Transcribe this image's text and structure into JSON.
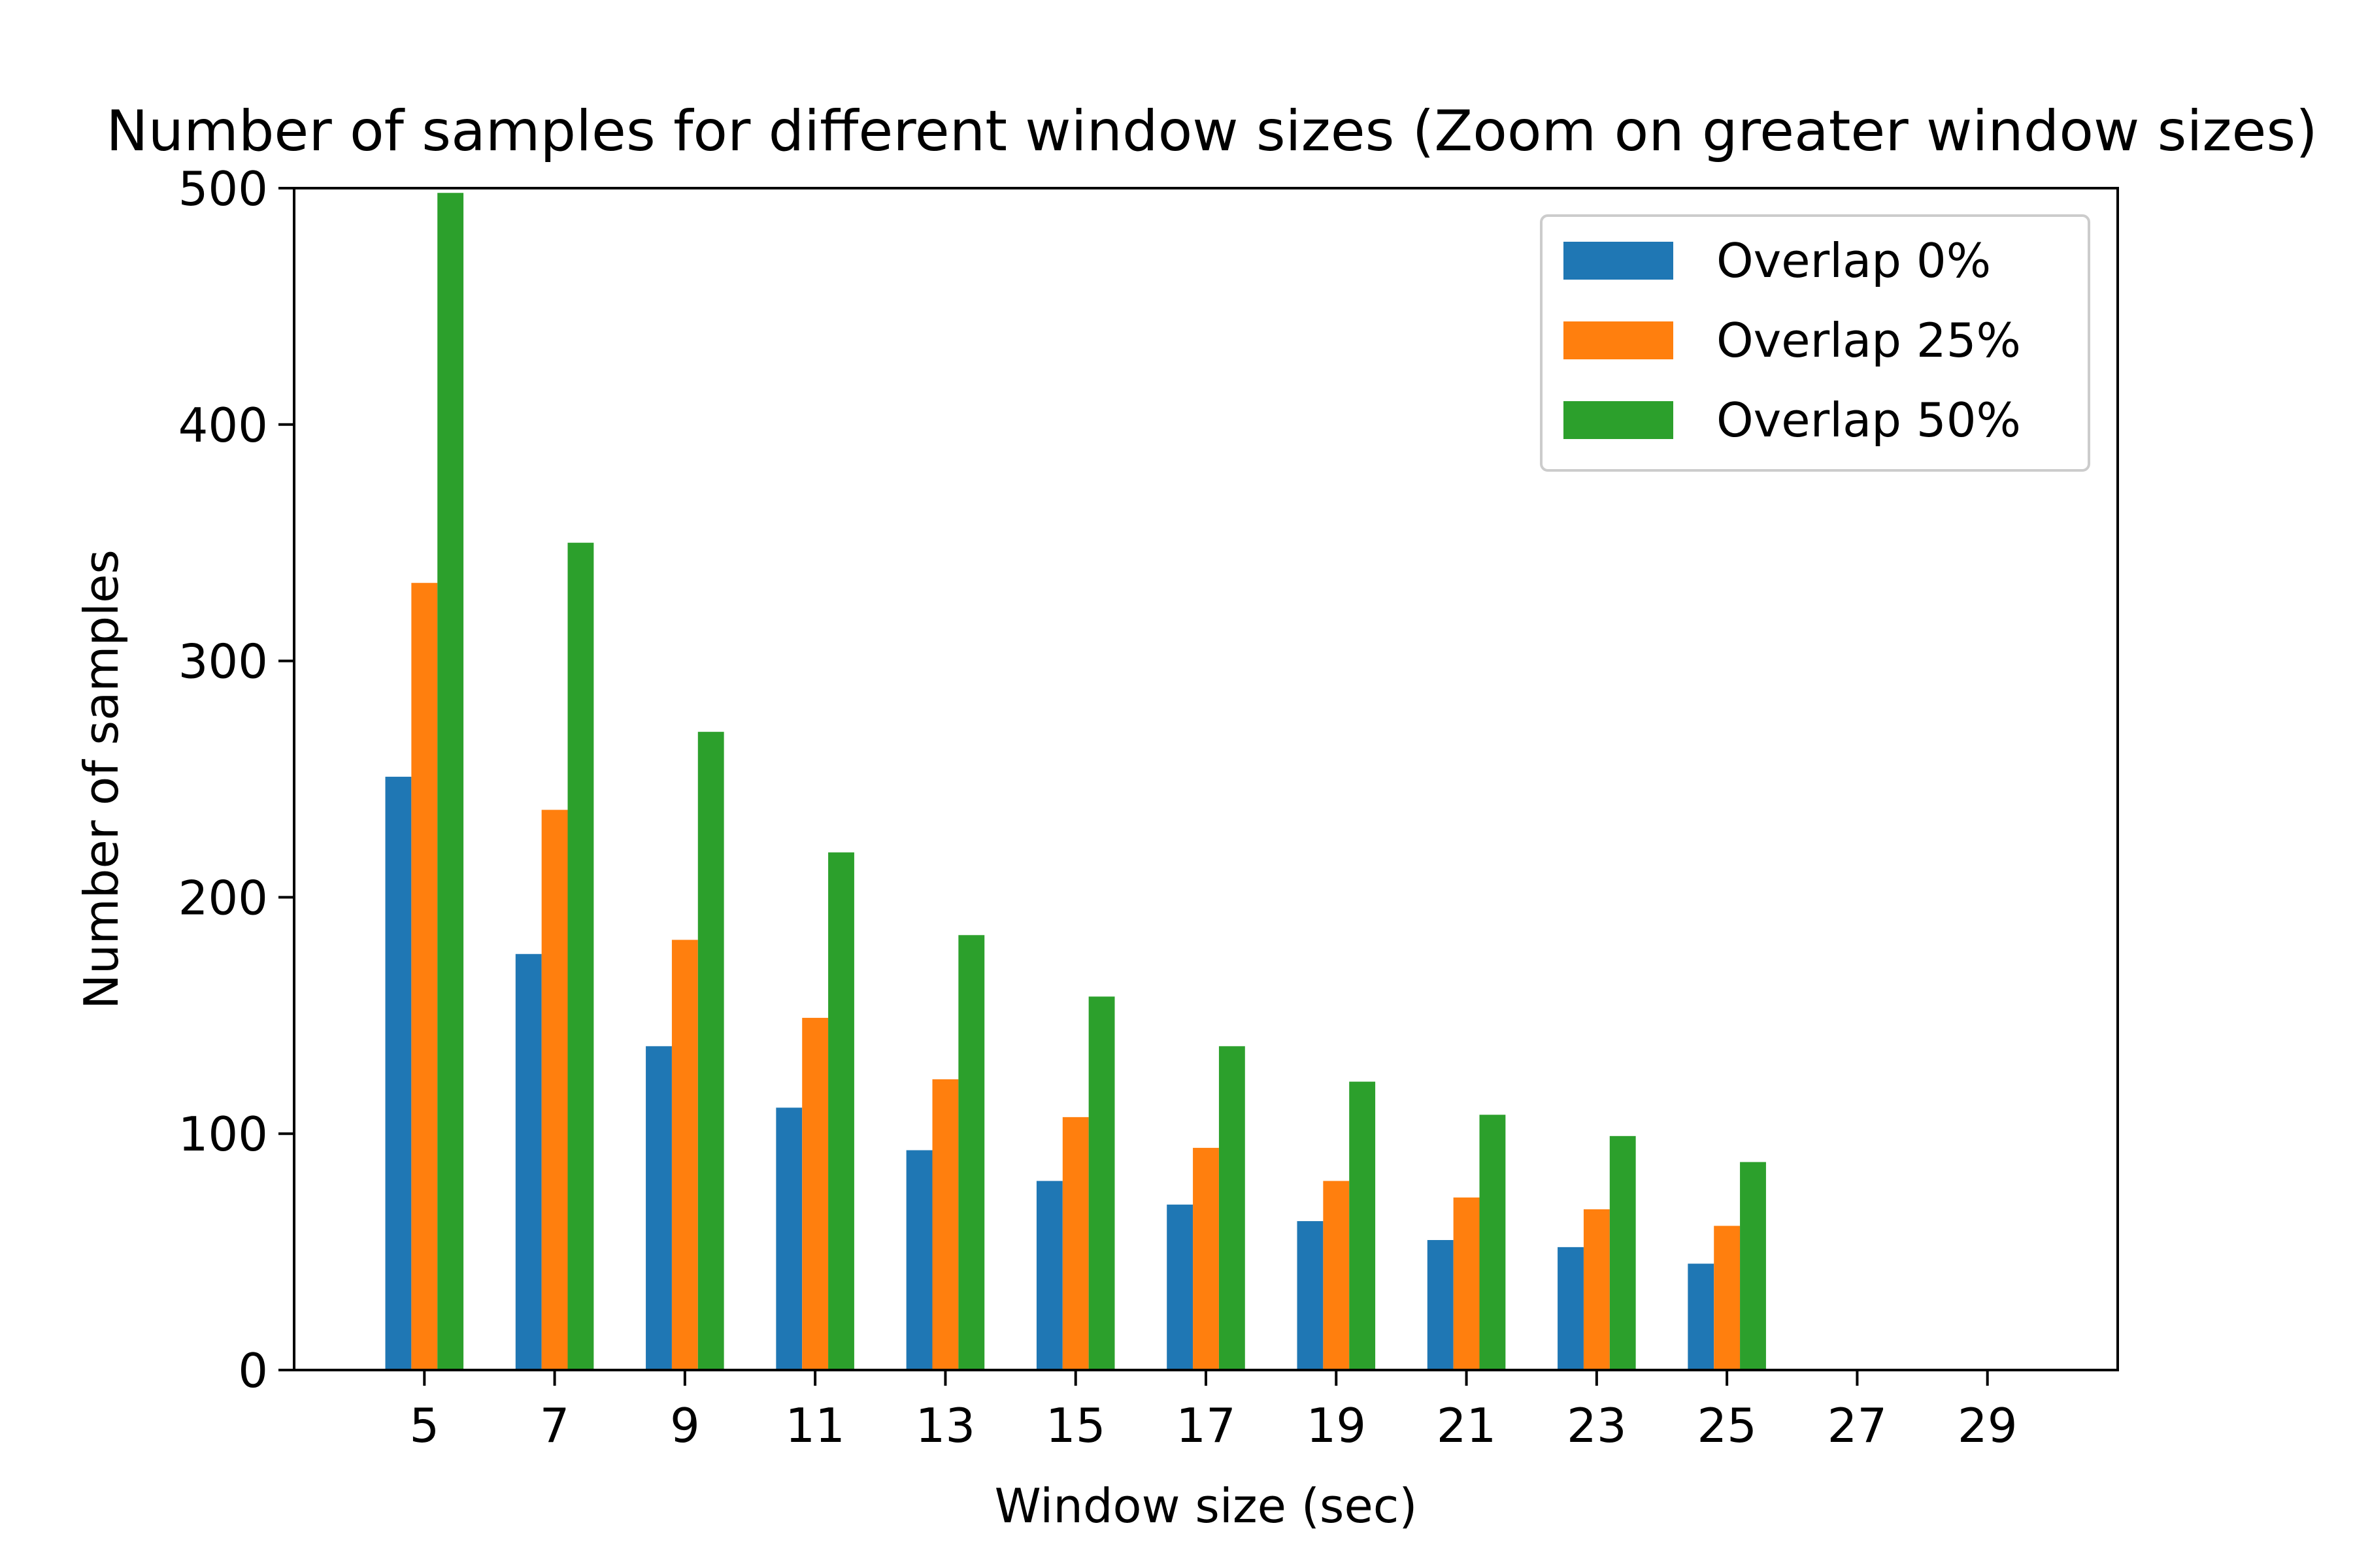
{
  "chart_data": {
    "type": "bar",
    "title": "Number of samples for different window sizes (Zoom on greater window sizes)",
    "xlabel": "Window size (sec)",
    "ylabel": "Number of samples",
    "xticks": [
      "5",
      "7",
      "9",
      "11",
      "13",
      "15",
      "17",
      "19",
      "21",
      "23",
      "25",
      "27",
      "29"
    ],
    "categories": [
      "5",
      "7",
      "9",
      "11",
      "13",
      "15",
      "17",
      "19",
      "21",
      "23",
      "25"
    ],
    "ylim": [
      0,
      500
    ],
    "yticks": [
      0,
      100,
      200,
      300,
      400,
      500
    ],
    "grid": false,
    "legend": "top-right",
    "series": [
      {
        "name": "Overlap 0%",
        "color": "#1f77b4",
        "values": [
          251,
          176,
          137,
          111,
          93,
          80,
          70,
          63,
          55,
          52,
          45
        ]
      },
      {
        "name": "Overlap 25%",
        "color": "#ff7f0e",
        "values": [
          333,
          237,
          182,
          149,
          123,
          107,
          94,
          80,
          73,
          68,
          61
        ]
      },
      {
        "name": "Overlap 50%",
        "color": "#2ca02c",
        "values": [
          498,
          350,
          270,
          219,
          184,
          158,
          137,
          122,
          108,
          99,
          88
        ]
      }
    ]
  }
}
